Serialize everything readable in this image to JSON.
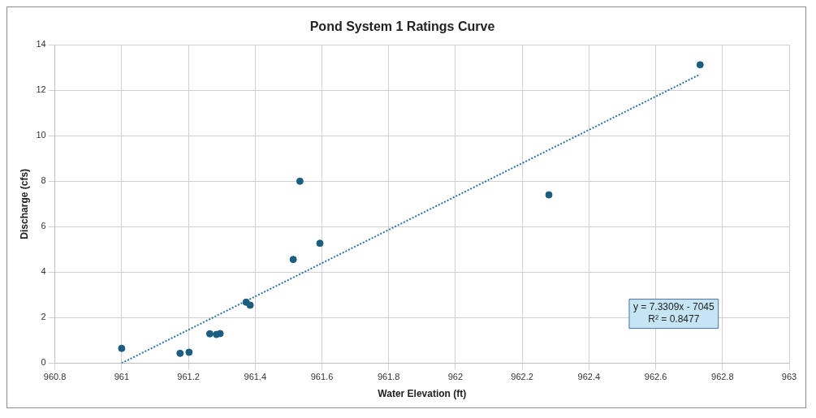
{
  "chart_data": {
    "type": "scatter",
    "title": "Pond System 1 Ratings Curve",
    "xlabel": "Water Elevation (ft)",
    "ylabel": "Discharge (cfs)",
    "xlim": [
      960.8,
      963
    ],
    "xticks": [
      960.8,
      961,
      961.2,
      961.4,
      961.6,
      961.8,
      962,
      962.2,
      962.4,
      962.6,
      962.8,
      963
    ],
    "ylim": [
      0,
      14
    ],
    "yticks": [
      0,
      2,
      4,
      6,
      8,
      10,
      12,
      14
    ],
    "grid": true,
    "legend": false,
    "marker": "circle",
    "annotations": [
      "y = 7.3309x - 7045",
      "R² = 0.8477"
    ],
    "series": [
      {
        "type": "scatter",
        "color": "#1b5e82",
        "x": [
          961.0,
          961.175,
          961.202,
          961.264,
          961.284,
          961.295,
          961.373,
          961.385,
          961.514,
          961.534,
          961.594,
          962.28,
          962.733
        ],
        "values": [
          0.65,
          0.43,
          0.48,
          1.29,
          1.26,
          1.3,
          2.68,
          2.55,
          4.56,
          8.0,
          5.27,
          7.4,
          13.12
        ]
      },
      {
        "type": "line",
        "color": "#2e75a0",
        "line_style": "dotted",
        "marker": "none",
        "x": [
          961.0,
          962.733
        ],
        "values": [
          0,
          12.7
        ]
      }
    ]
  }
}
